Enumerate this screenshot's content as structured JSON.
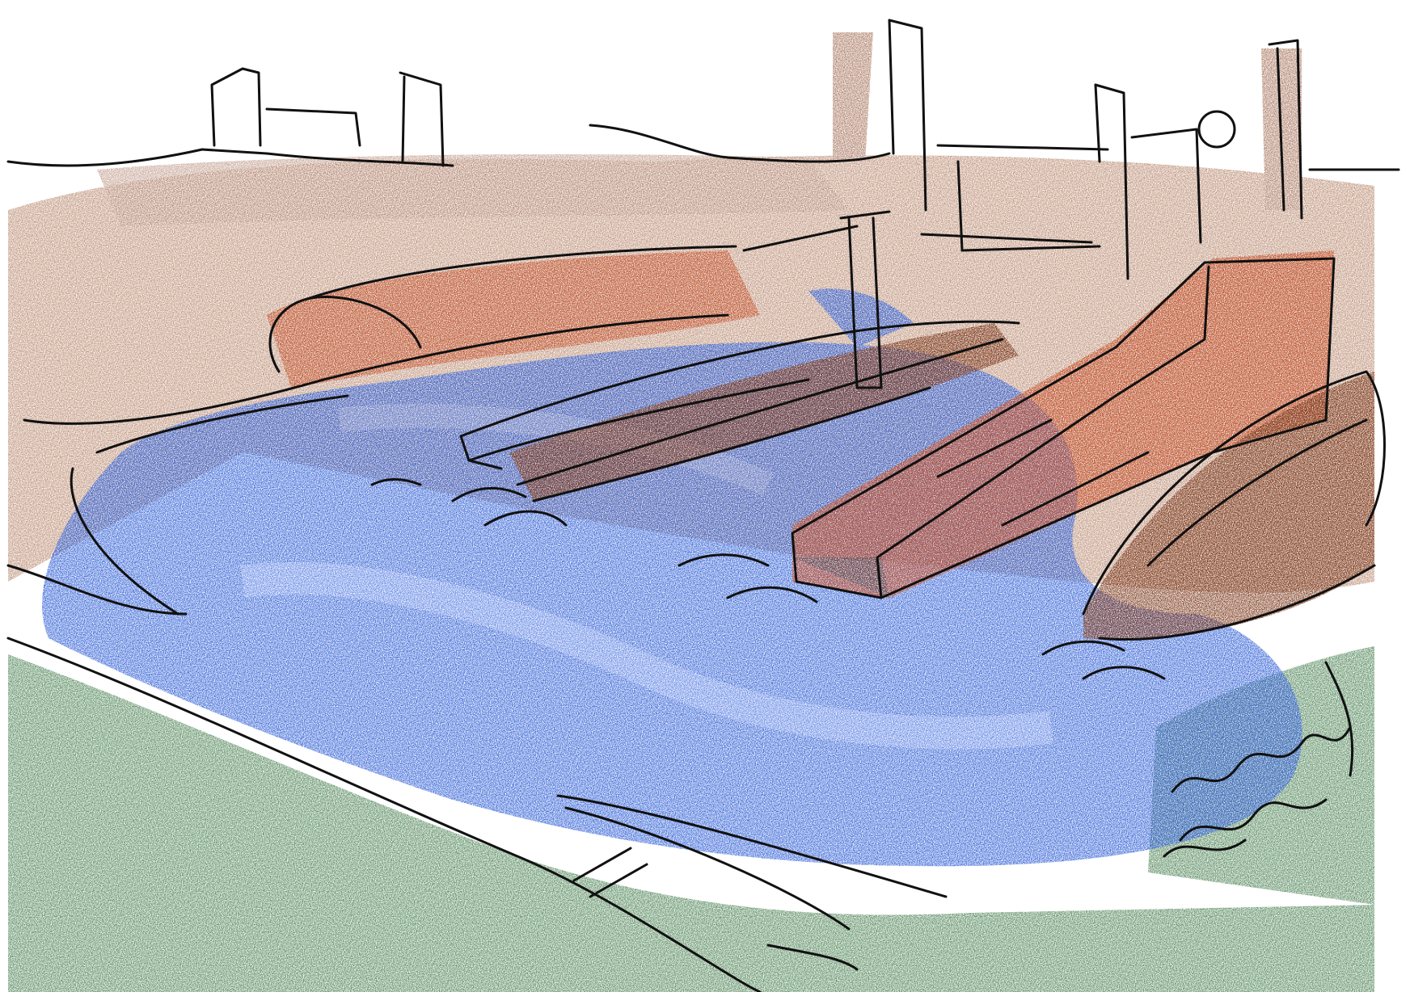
{
  "image": {
    "kind": "hand-drawn architectural sketch",
    "palette": {
      "paper": "#ffffff",
      "ground_brown": "#b07a5c",
      "ground_brown_dark": "#9a5f44",
      "building_rust": "#c24a22",
      "building_brown": "#7a3518",
      "water_blue": "#2f5fd6",
      "water_light": "#6d90ea",
      "grass_green": "#3f7a48",
      "ink": "#111111"
    }
  }
}
